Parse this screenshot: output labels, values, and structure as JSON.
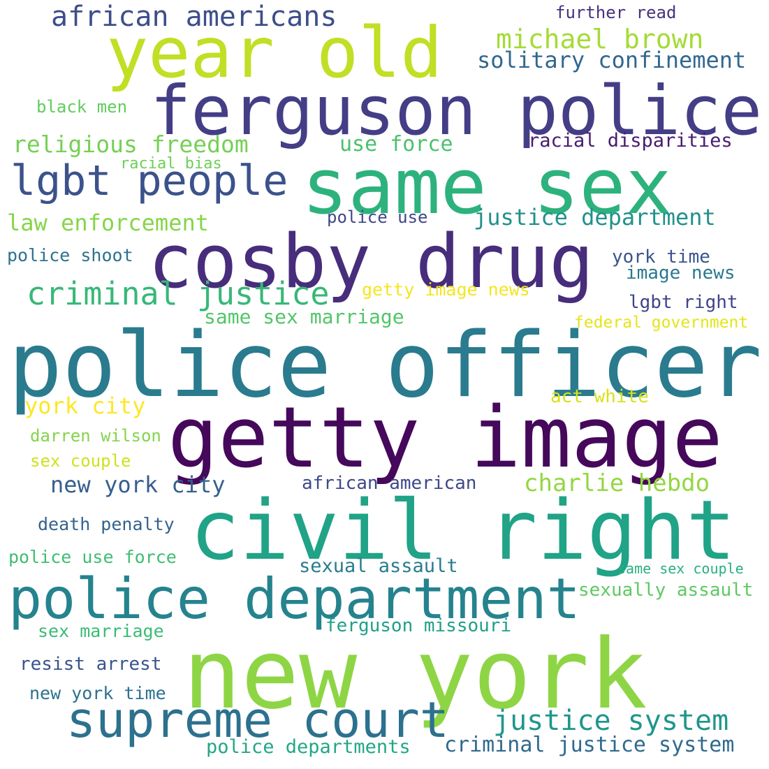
{
  "words": [
    {
      "text": "new york",
      "color": "#8ed545"
    },
    {
      "text": "police officer",
      "color": "#2a7b8e"
    },
    {
      "text": "getty image",
      "color": "#45085b"
    },
    {
      "text": "civil right",
      "color": "#20a386"
    },
    {
      "text": "same sex",
      "color": "#2db27d"
    },
    {
      "text": "cosby drug",
      "color": "#472d7b"
    },
    {
      "text": "ferguson police",
      "color": "#433e85"
    },
    {
      "text": "year old",
      "color": "#c0df25"
    },
    {
      "text": "police department",
      "color": "#25838e"
    },
    {
      "text": "supreme court",
      "color": "#2c718e"
    },
    {
      "text": "lgbt people",
      "color": "#3b528b"
    },
    {
      "text": "criminal justice",
      "color": "#37b878"
    },
    {
      "text": "justice system",
      "color": "#1f968b"
    },
    {
      "text": "african americans",
      "color": "#3d4e8a"
    },
    {
      "text": "michael brown",
      "color": "#a5db36"
    },
    {
      "text": "charlie hebdo",
      "color": "#93d741"
    },
    {
      "text": "religious freedom",
      "color": "#75d054"
    },
    {
      "text": "solitary confinement",
      "color": "#31678e"
    },
    {
      "text": "justice department",
      "color": "#21918c"
    },
    {
      "text": "law enforcement",
      "color": "#86d549"
    },
    {
      "text": "new york city",
      "color": "#355f8d"
    },
    {
      "text": "criminal justice system",
      "color": "#30698e"
    },
    {
      "text": "use force",
      "color": "#4ac16d"
    },
    {
      "text": "racial disparities",
      "color": "#481b6d"
    },
    {
      "text": "same sex marriage",
      "color": "#52c569"
    },
    {
      "text": "getty image news",
      "color": "#f4e61e"
    },
    {
      "text": "york city",
      "color": "#fde725"
    },
    {
      "text": "police departments",
      "color": "#22a785"
    },
    {
      "text": "sexually assault",
      "color": "#5ec962"
    },
    {
      "text": "african american",
      "color": "#3e4989"
    },
    {
      "text": "image news",
      "color": "#2a788e"
    },
    {
      "text": "york time",
      "color": "#39558c"
    },
    {
      "text": "lgbt right",
      "color": "#414487"
    },
    {
      "text": "act white",
      "color": "#d8e219"
    },
    {
      "text": "further read",
      "color": "#46337e"
    },
    {
      "text": "black men",
      "color": "#63cb5f"
    },
    {
      "text": "racial bias",
      "color": "#6ece58"
    },
    {
      "text": "police use",
      "color": "#3f4788"
    },
    {
      "text": "police shoot",
      "color": "#2c728e"
    },
    {
      "text": "federal government",
      "color": "#e5e419"
    },
    {
      "text": "darren wilson",
      "color": "#84d44b"
    },
    {
      "text": "sex couple",
      "color": "#d0e11c"
    },
    {
      "text": "death penalty",
      "color": "#33638d"
    },
    {
      "text": "police use force",
      "color": "#40bd72"
    },
    {
      "text": "sexual assault",
      "color": "#287c8e"
    },
    {
      "text": "same sex couple",
      "color": "#29af7f"
    },
    {
      "text": "sex marriage",
      "color": "#3bbb75"
    },
    {
      "text": "ferguson missouri",
      "color": "#1fa088"
    },
    {
      "text": "resist arrest",
      "color": "#3a548c"
    },
    {
      "text": "new york time",
      "color": "#2d718e"
    }
  ]
}
